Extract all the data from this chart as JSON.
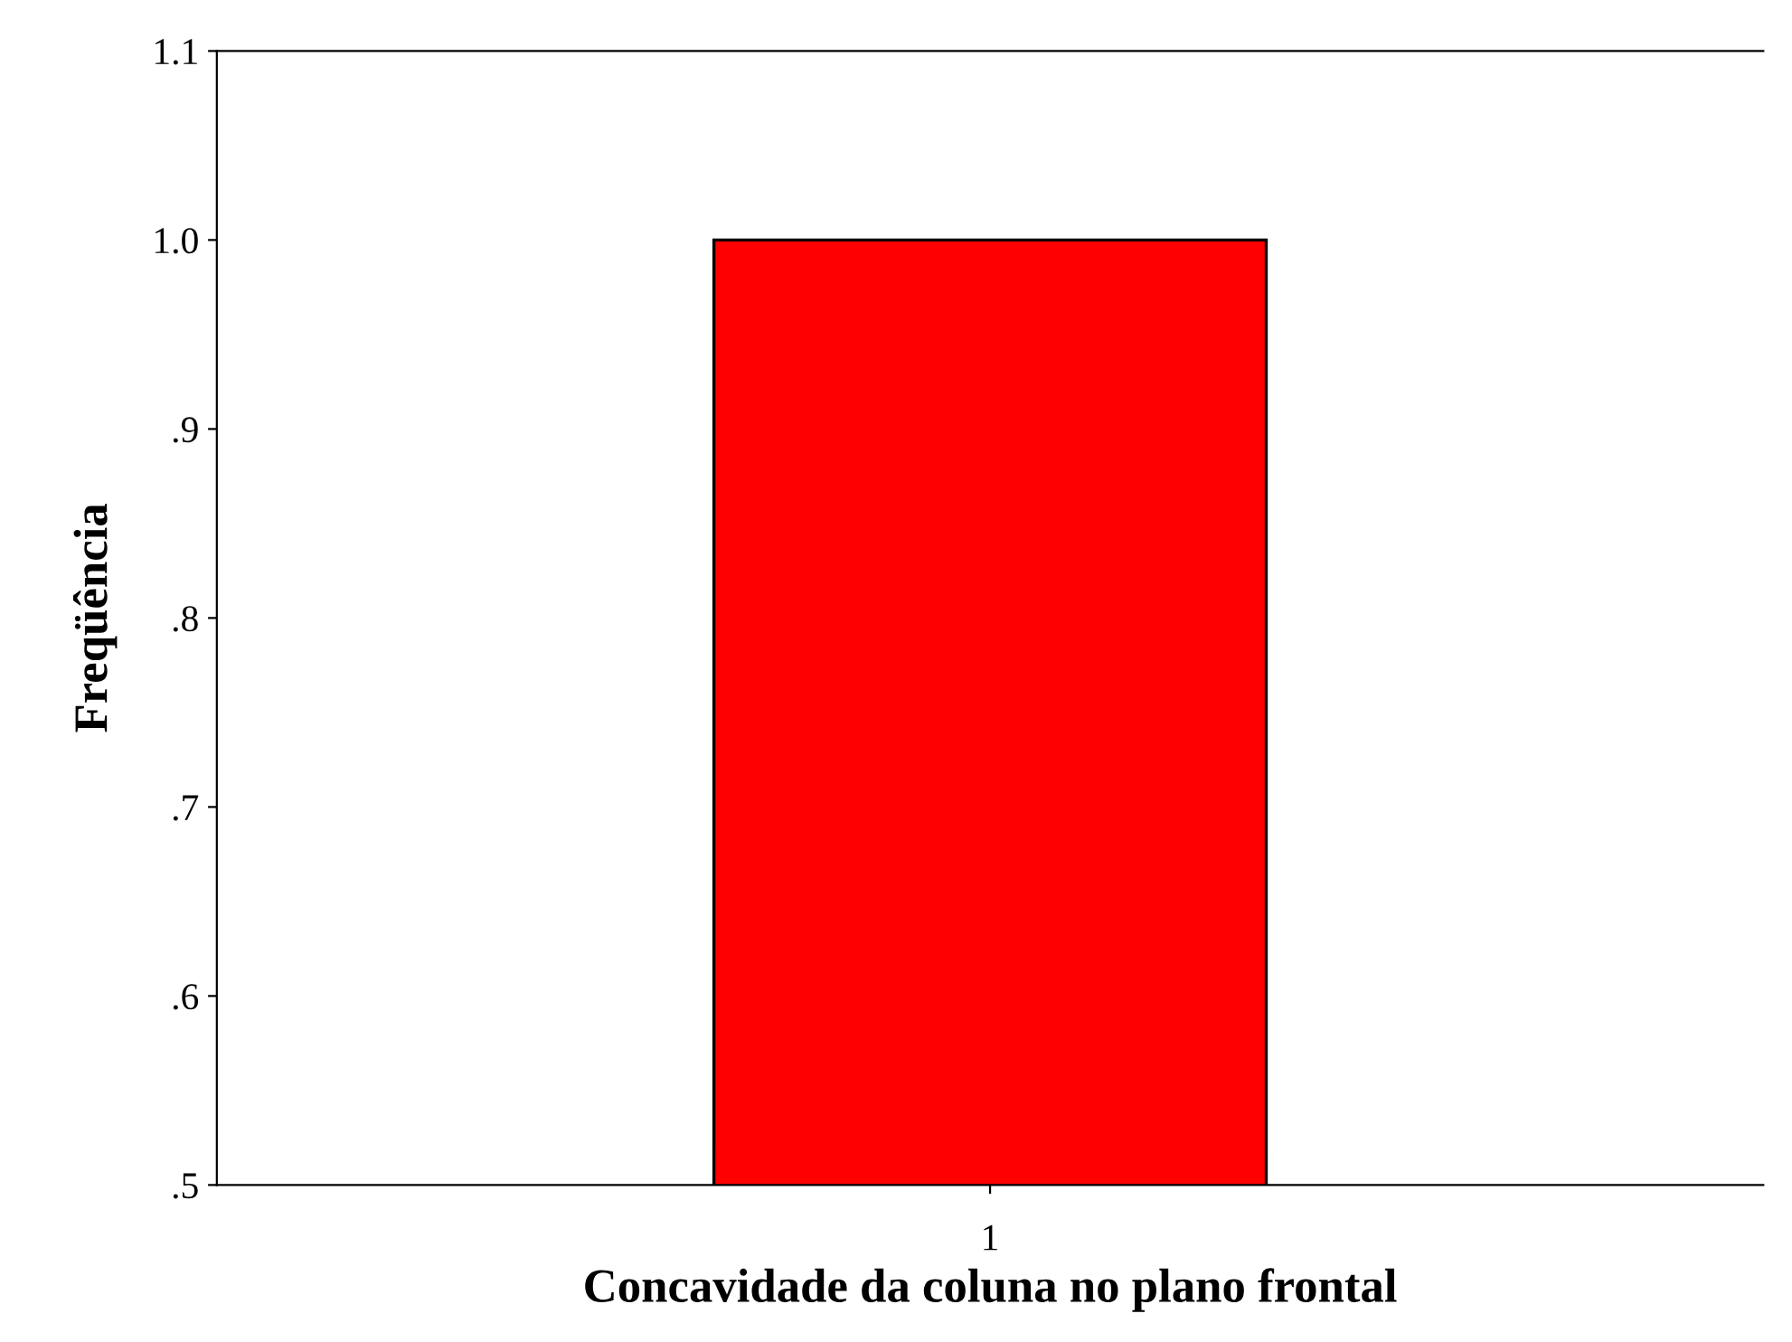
{
  "chart_data": {
    "type": "bar",
    "xlabel": "Concavidade da coluna no plano frontal",
    "ylabel": "Freqüência",
    "categories": [
      "1"
    ],
    "series": [
      {
        "color": "#ff0000",
        "values": [
          1.0
        ]
      }
    ],
    "ylim": [
      0.5,
      1.1
    ],
    "yticks": [
      {
        "value": 0.5,
        "label": ".5"
      },
      {
        "value": 0.6,
        "label": ".6"
      },
      {
        "value": 0.7,
        "label": ".7"
      },
      {
        "value": 0.8,
        "label": ".8"
      },
      {
        "value": 0.9,
        "label": ".9"
      },
      {
        "value": 1.0,
        "label": "1.0"
      },
      1.1
    ],
    "grid": false,
    "legend": false
  }
}
